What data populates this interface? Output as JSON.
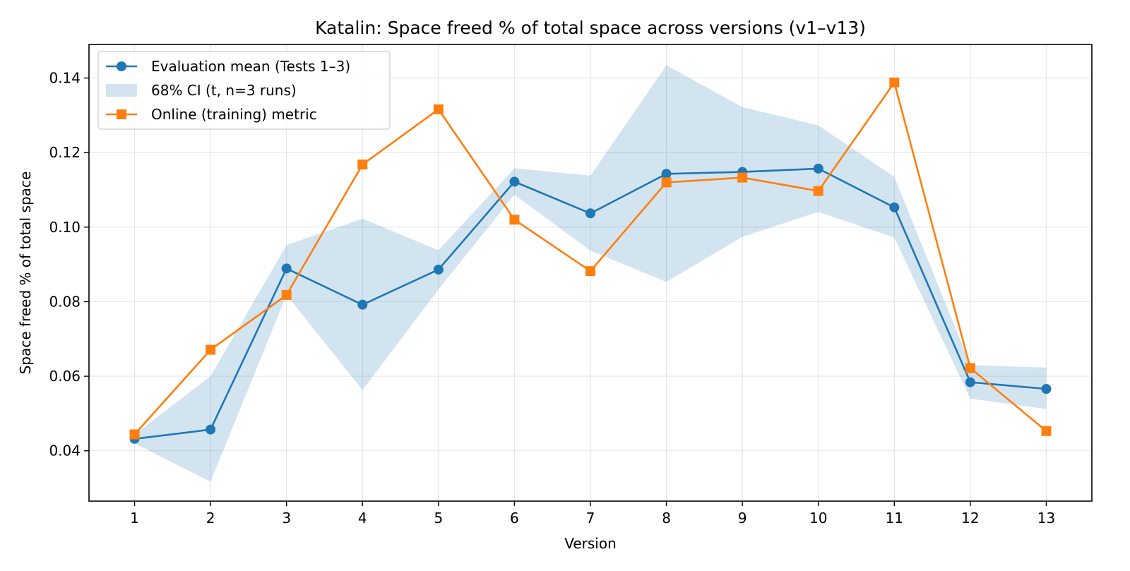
{
  "chart_data": {
    "type": "line",
    "title": "Katalin: Space freed % of total space across versions (v1–v13)",
    "xlabel": "Version",
    "ylabel": "Space freed % of total space",
    "x": [
      1,
      2,
      3,
      4,
      5,
      6,
      7,
      8,
      9,
      10,
      11,
      12,
      13
    ],
    "xlim": [
      0.4,
      13.6
    ],
    "ylim": [
      0.0265,
      0.149
    ],
    "yticks": [
      0.04,
      0.06,
      0.08,
      0.1,
      0.12,
      0.14
    ],
    "ytick_labels": [
      "0.04",
      "0.06",
      "0.08",
      "0.10",
      "0.12",
      "0.14"
    ],
    "grid": true,
    "legend_position": "upper left",
    "series": [
      {
        "name": "Evaluation mean (Tests 1–3)",
        "color": "#1f77b4",
        "marker": "circle",
        "values": [
          0.0432,
          0.0457,
          0.0889,
          0.0792,
          0.0886,
          0.1122,
          0.1037,
          0.1143,
          0.1148,
          0.1157,
          0.1053,
          0.0584,
          0.0566
        ]
      },
      {
        "name": "Online (training) metric",
        "color": "#ff7f0e",
        "marker": "square",
        "values": [
          0.0444,
          0.0671,
          0.0818,
          0.1168,
          0.1316,
          0.102,
          0.0882,
          0.112,
          0.1133,
          0.1097,
          0.1388,
          0.0622,
          0.0453
        ]
      }
    ],
    "band": {
      "name": "68% CI (t, n=3 runs)",
      "color": "#1f77b4",
      "opacity": 0.2,
      "lower": [
        0.042,
        0.0317,
        0.0818,
        0.0563,
        0.0833,
        0.1087,
        0.0937,
        0.0853,
        0.0974,
        0.1041,
        0.0972,
        0.054,
        0.0512
      ],
      "upper": [
        0.0444,
        0.06,
        0.0952,
        0.1023,
        0.0938,
        0.1158,
        0.1138,
        0.1434,
        0.1322,
        0.1273,
        0.1135,
        0.063,
        0.0623
      ]
    }
  }
}
